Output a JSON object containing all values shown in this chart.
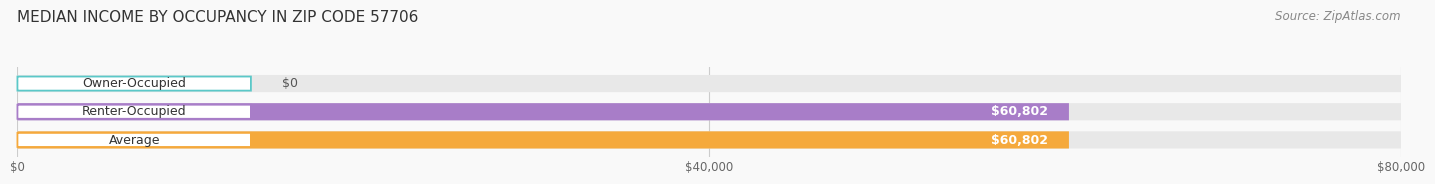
{
  "title": "MEDIAN INCOME BY OCCUPANCY IN ZIP CODE 57706",
  "source": "Source: ZipAtlas.com",
  "categories": [
    "Owner-Occupied",
    "Renter-Occupied",
    "Average"
  ],
  "values": [
    0,
    60802,
    60802
  ],
  "bar_colors": [
    "#5bc8c8",
    "#a87dc8",
    "#f5a93c"
  ],
  "bar_bg_color": "#e8e8e8",
  "xlim": [
    0,
    80000
  ],
  "xticks": [
    0,
    40000,
    80000
  ],
  "xtick_labels": [
    "$0",
    "$40,000",
    "$80,000"
  ],
  "value_labels": [
    "$0",
    "$60,802",
    "$60,802"
  ],
  "title_fontsize": 11,
  "source_fontsize": 8.5,
  "label_fontsize": 9,
  "bar_height": 0.58,
  "background_color": "#f9f9f9"
}
